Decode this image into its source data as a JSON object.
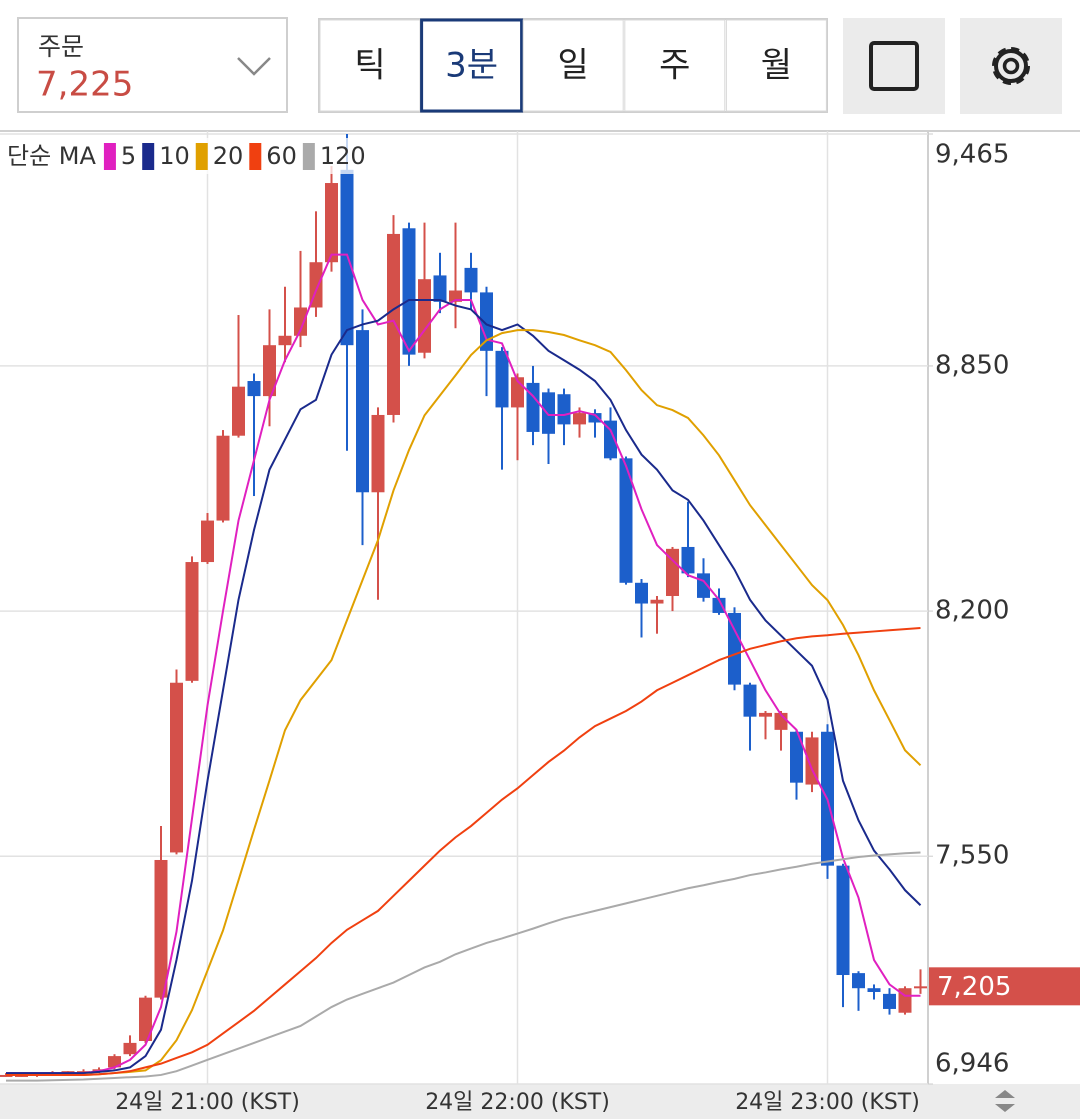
{
  "header": {
    "order": {
      "label": "주문",
      "value": "7,225"
    },
    "tabs": [
      "틱",
      "3분",
      "일",
      "주",
      "월"
    ],
    "selected_tab_index": 1
  },
  "chart_data": {
    "type": "candlestick",
    "legend_title": "단순 MA",
    "categories": [
      null,
      null,
      null,
      null,
      null,
      null,
      null,
      null,
      null,
      null,
      null,
      null,
      null,
      "24일 21:00 (KST)",
      null,
      null,
      null,
      null,
      null,
      null,
      null,
      null,
      null,
      null,
      null,
      null,
      null,
      null,
      null,
      null,
      null,
      null,
      null,
      "24일 22:00 (KST)",
      null,
      null,
      null,
      null,
      null,
      null,
      null,
      null,
      null,
      null,
      null,
      null,
      null,
      null,
      null,
      null,
      null,
      null,
      null,
      "24일 23:00 (KST)",
      null,
      null,
      null,
      null,
      null,
      null
    ],
    "up_color": "#d4504a",
    "down_color": "#1c5fcb",
    "open": [
      6970,
      6970,
      6970,
      6975,
      6975,
      6980,
      6980,
      6990,
      7025,
      7060,
      7175,
      7560,
      8015,
      8330,
      8440,
      8665,
      8810,
      8770,
      8905,
      8930,
      9005,
      9125,
      9370,
      8945,
      8515,
      8720,
      9215,
      8885,
      9090,
      9020,
      9110,
      9045,
      8890,
      8740,
      8805,
      8780,
      8775,
      8695,
      8725,
      8705,
      8605,
      8275,
      8220,
      8240,
      8370,
      8300,
      8235,
      8195,
      8005,
      7920,
      7885,
      7880,
      7740,
      7880,
      7525,
      7240,
      7200,
      7185,
      7135,
      7200
    ],
    "high": [
      6975,
      6975,
      6975,
      6980,
      6980,
      6985,
      6990,
      7025,
      7075,
      7180,
      7630,
      8045,
      8345,
      8460,
      8680,
      8985,
      8830,
      9000,
      9060,
      9155,
      9260,
      9380,
      9465,
      9000,
      8740,
      9250,
      9230,
      9230,
      9150,
      9230,
      9150,
      9060,
      8900,
      8830,
      8850,
      8790,
      8790,
      8740,
      8735,
      8740,
      8610,
      8285,
      8240,
      8370,
      8490,
      8340,
      8260,
      8210,
      8010,
      7935,
      7935,
      7885,
      7880,
      7900,
      7530,
      7245,
      7210,
      7200,
      7205,
      7250
    ],
    "low": [
      6965,
      6965,
      6965,
      6970,
      6970,
      6975,
      6975,
      6985,
      7020,
      7055,
      7170,
      7555,
      8010,
      8325,
      8435,
      8660,
      8505,
      8690,
      8860,
      8900,
      8980,
      9100,
      8625,
      8375,
      8230,
      8700,
      8850,
      8870,
      8990,
      8950,
      9000,
      8770,
      8575,
      8600,
      8640,
      8590,
      8640,
      8660,
      8660,
      8600,
      8270,
      8130,
      8140,
      8200,
      8290,
      8225,
      8190,
      7990,
      7830,
      7860,
      7830,
      7700,
      7720,
      7490,
      7150,
      7140,
      7170,
      7130,
      7130,
      7185
    ],
    "close": [
      6970,
      6970,
      6975,
      6975,
      6980,
      6980,
      6985,
      7020,
      7055,
      7175,
      7540,
      8010,
      8330,
      8440,
      8665,
      8795,
      8770,
      8905,
      8930,
      9005,
      9125,
      9335,
      8905,
      8515,
      8720,
      9200,
      8880,
      9080,
      9020,
      9050,
      9045,
      8890,
      8740,
      8820,
      8675,
      8670,
      8695,
      8725,
      8700,
      8605,
      8275,
      8220,
      8230,
      8365,
      8300,
      8235,
      8195,
      8005,
      7920,
      7930,
      7930,
      7745,
      7865,
      7525,
      7235,
      7200,
      7190,
      7145,
      7200,
      7205
    ],
    "series": [
      {
        "name": "5",
        "color": "#e020c0",
        "values": [
          6975,
          6975,
          6975,
          6975,
          6975,
          6975,
          6980,
          6990,
          7010,
          7050,
          7150,
          7350,
          7650,
          7950,
          8200,
          8440,
          8600,
          8760,
          8865,
          8945,
          9050,
          9145,
          9145,
          9025,
          8960,
          8970,
          8890,
          8945,
          9000,
          9025,
          9025,
          8920,
          8910,
          8810,
          8770,
          8720,
          8720,
          8730,
          8720,
          8680,
          8585,
          8470,
          8375,
          8335,
          8295,
          8280,
          8230,
          8150,
          8070,
          7990,
          7925,
          7885,
          7780,
          7700,
          7545,
          7440,
          7275,
          7210,
          7180,
          7180
        ]
      },
      {
        "name": "10",
        "color": "#1a2a8c",
        "values": [
          6975,
          6975,
          6975,
          6975,
          6975,
          6975,
          6978,
          6982,
          6990,
          7020,
          7090,
          7275,
          7485,
          7750,
          7990,
          8230,
          8415,
          8575,
          8655,
          8735,
          8760,
          8880,
          8945,
          8960,
          8970,
          9000,
          9025,
          9025,
          9025,
          9010,
          9000,
          8960,
          8945,
          8960,
          8930,
          8890,
          8865,
          8840,
          8810,
          8760,
          8680,
          8615,
          8575,
          8520,
          8495,
          8440,
          8375,
          8310,
          8230,
          8175,
          8135,
          8095,
          8055,
          7965,
          7750,
          7645,
          7565,
          7515,
          7460,
          7420
        ]
      },
      {
        "name": "20",
        "color": "#e0a000",
        "values": [
          6970,
          6970,
          6970,
          6970,
          6970,
          6970,
          6972,
          6975,
          6978,
          6982,
          7009,
          7062,
          7142,
          7247,
          7353,
          7486,
          7620,
          7751,
          7884,
          7964,
          8017,
          8070,
          8176,
          8282,
          8388,
          8520,
          8627,
          8719,
          8772,
          8825,
          8879,
          8918,
          8937,
          8945,
          8945,
          8940,
          8932,
          8918,
          8905,
          8887,
          8839,
          8786,
          8746,
          8733,
          8712,
          8666,
          8613,
          8547,
          8481,
          8428,
          8375,
          8322,
          8269,
          8229,
          8163,
          8083,
          7990,
          7911,
          7831,
          7791
        ]
      },
      {
        "name": "60",
        "color": "#f04010",
        "values": [
          6970,
          6970,
          6970,
          6970,
          6970,
          6970,
          6972,
          6975,
          6980,
          6990,
          7000,
          7015,
          7030,
          7050,
          7080,
          7110,
          7140,
          7175,
          7210,
          7245,
          7280,
          7320,
          7355,
          7380,
          7405,
          7445,
          7485,
          7525,
          7565,
          7600,
          7630,
          7665,
          7700,
          7730,
          7765,
          7800,
          7830,
          7865,
          7895,
          7915,
          7935,
          7960,
          7990,
          8010,
          8030,
          8050,
          8070,
          8085,
          8100,
          8110,
          8120,
          8128,
          8133,
          8136,
          8140,
          8143,
          8146,
          8149,
          8152,
          8155
        ]
      },
      {
        "name": "120",
        "color": "#aaaaaa",
        "values": [
          6955,
          6955,
          6955,
          6956,
          6957,
          6958,
          6960,
          6962,
          6964,
          6966,
          6970,
          6980,
          6995,
          7010,
          7025,
          7040,
          7055,
          7070,
          7085,
          7100,
          7125,
          7150,
          7170,
          7185,
          7200,
          7215,
          7235,
          7255,
          7270,
          7290,
          7305,
          7320,
          7332,
          7345,
          7358,
          7372,
          7385,
          7395,
          7405,
          7415,
          7425,
          7435,
          7445,
          7455,
          7465,
          7473,
          7482,
          7490,
          7500,
          7507,
          7515,
          7522,
          7530,
          7536,
          7542,
          7548,
          7552,
          7555,
          7558,
          7560
        ]
      }
    ],
    "ylim": [
      6946,
      9465
    ],
    "yticks": [
      {
        "value": 6946,
        "label": "6,946"
      },
      {
        "value": 7550,
        "label": "7,550"
      },
      {
        "value": 8200,
        "label": "8,200"
      },
      {
        "value": 8850,
        "label": "8,850"
      },
      {
        "value": 9465,
        "label": "9,465"
      }
    ],
    "last_price": {
      "value": 7205,
      "label": "7,205"
    },
    "grid": true
  }
}
